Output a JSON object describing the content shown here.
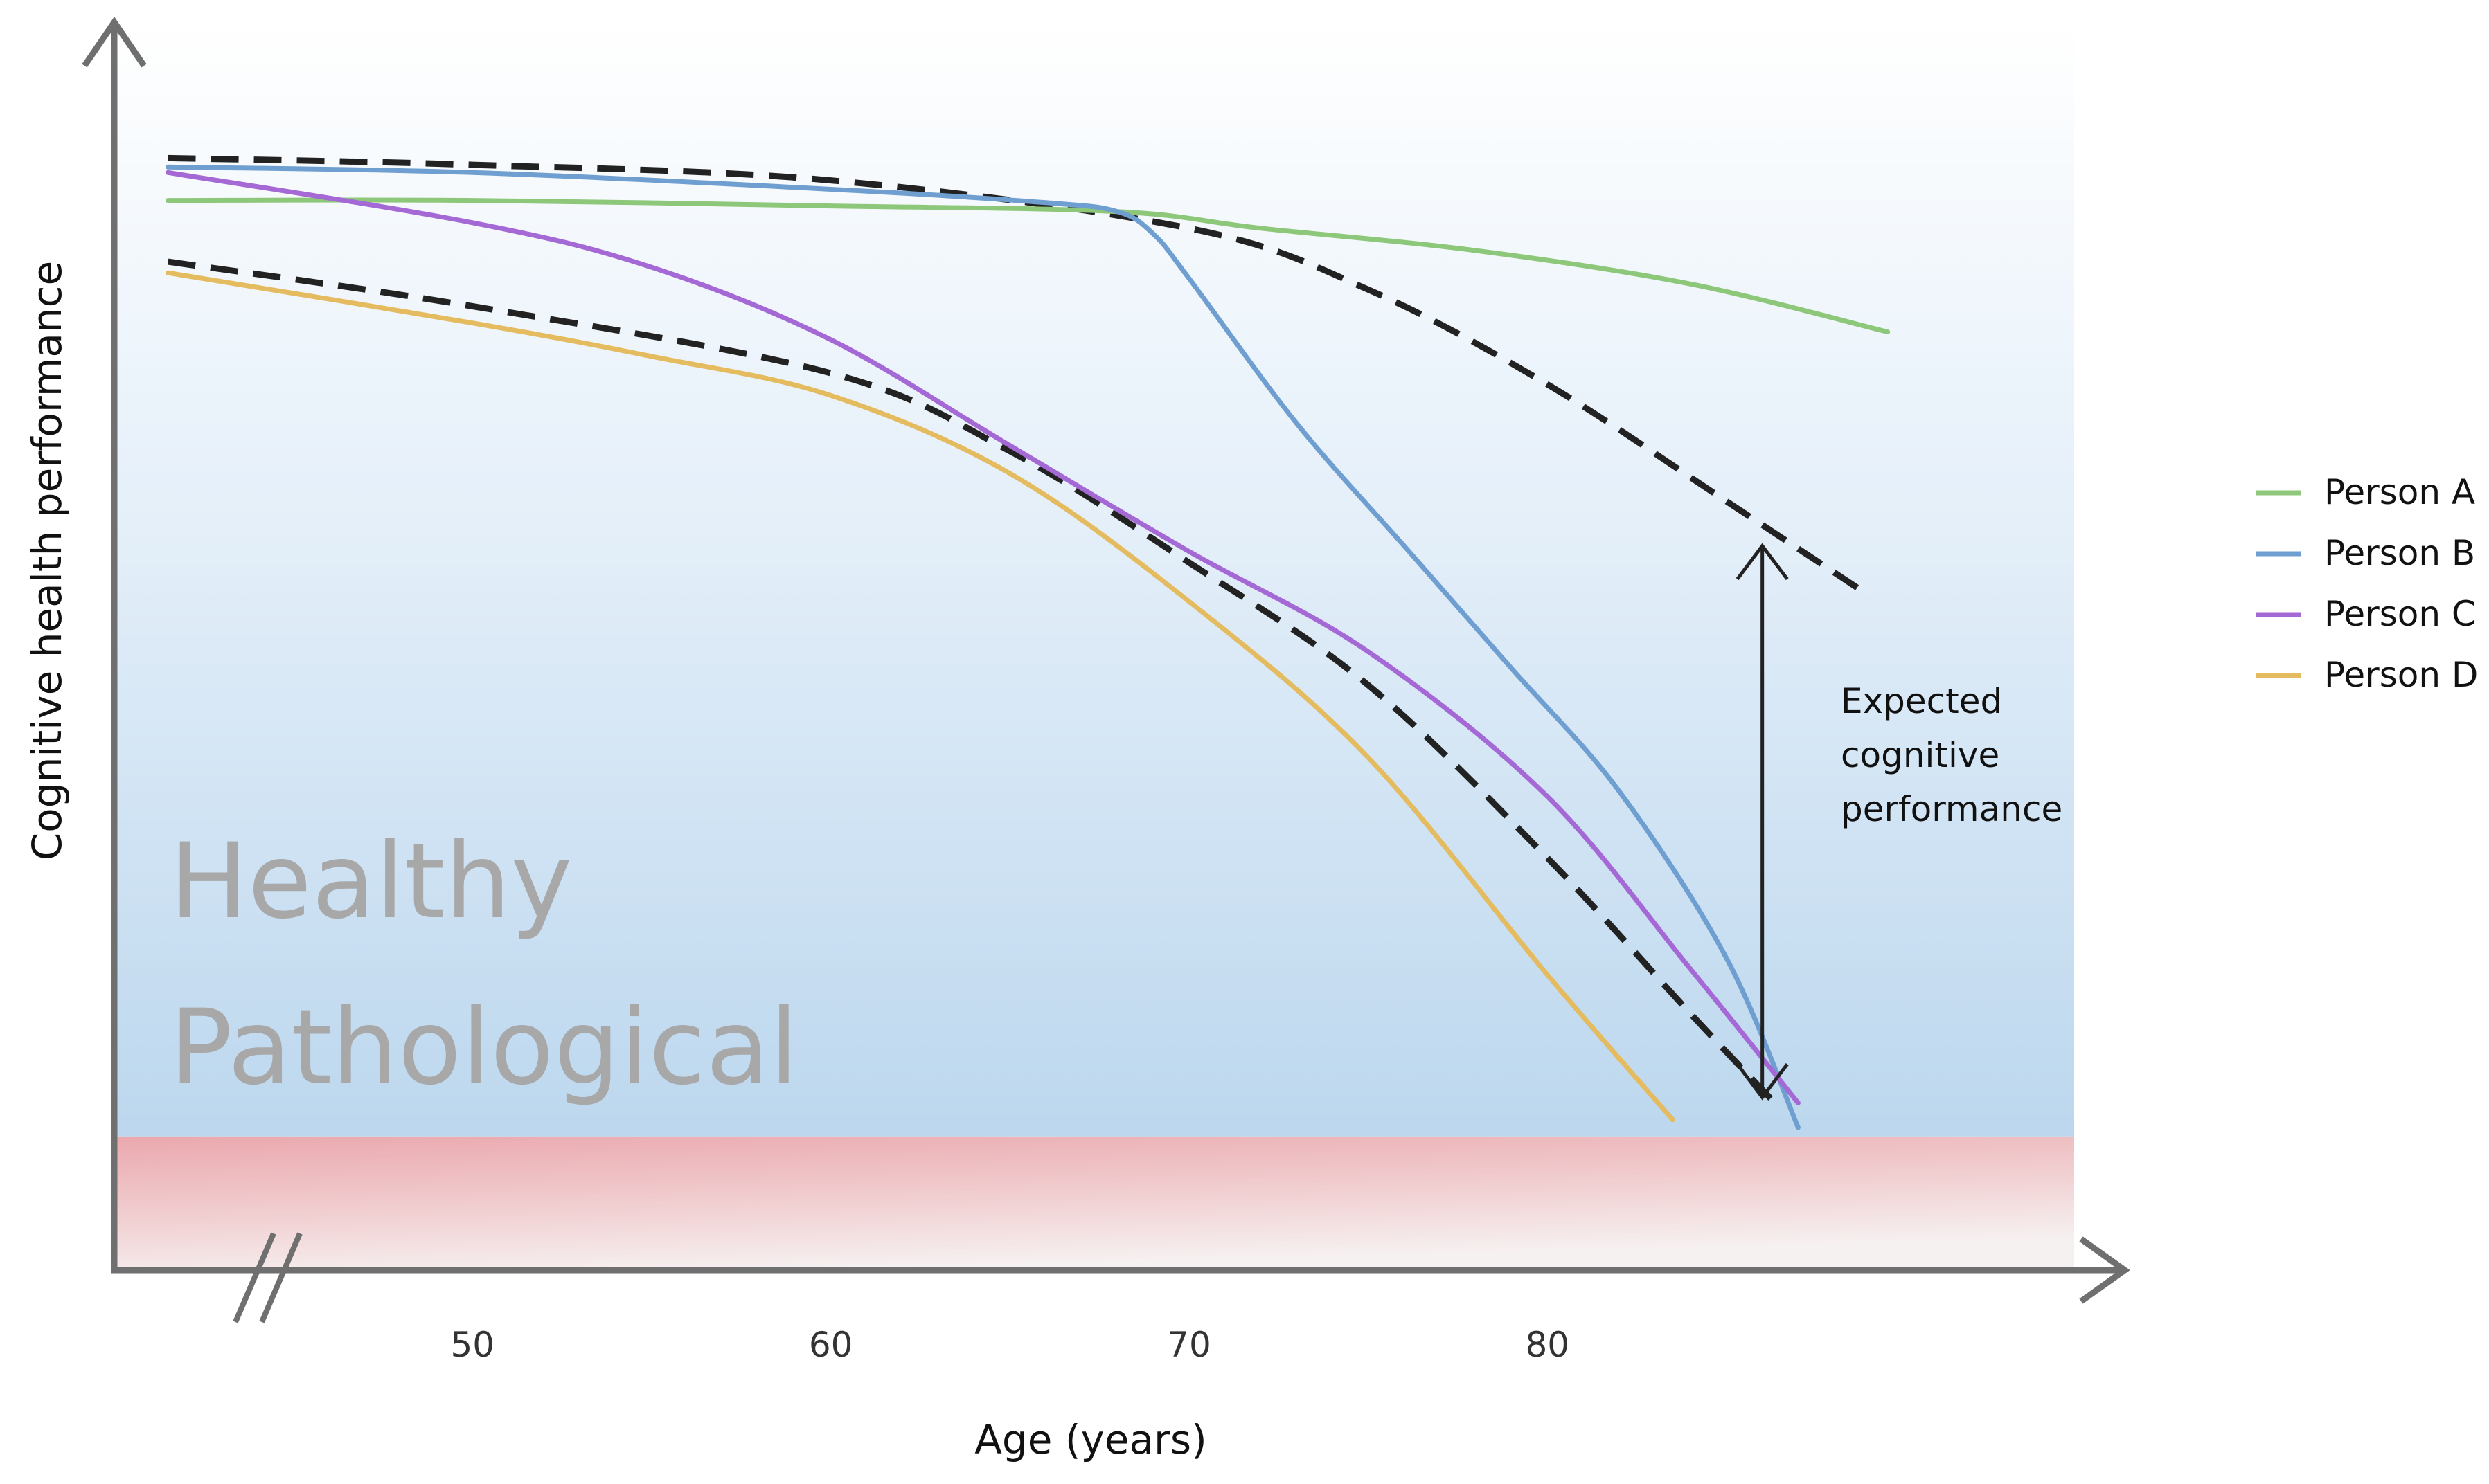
{
  "chart_data": {
    "type": "line",
    "title": "",
    "xlabel": "Age (years)",
    "ylabel": "Cognitive health performance",
    "xlim": [
      40,
      96
    ],
    "ylim": [
      -12,
      100
    ],
    "x_ticks": [
      50,
      60,
      70,
      80
    ],
    "x_tick_labels": [
      "50",
      "60",
      "70",
      "80"
    ],
    "axis_break": true,
    "grid": false,
    "legend_position": "right",
    "zones": [
      {
        "name": "Healthy",
        "label": "Healthy",
        "from": 0,
        "to": 100,
        "color": "#bcd7ee"
      },
      {
        "name": "Pathological",
        "label": "Pathological",
        "from": -12,
        "to": 0,
        "color": "#eaa8ae"
      }
    ],
    "series": [
      {
        "name": "Person A",
        "color": "#8dc77a",
        "x": [
          41.5,
          50,
          60,
          68,
          72,
          78,
          84,
          89.5
        ],
        "y": [
          84.0,
          84.0,
          83.5,
          83.0,
          81.5,
          79.5,
          76.5,
          72.2
        ]
      },
      {
        "name": "Person B",
        "color": "#6f9fd0",
        "x": [
          41.5,
          50,
          60,
          66,
          68,
          69,
          70,
          73,
          76,
          79,
          82,
          85,
          87
        ],
        "y": [
          87.0,
          86.5,
          85.0,
          83.8,
          83.0,
          81.0,
          77.0,
          64.0,
          53.0,
          42.0,
          31.0,
          16.0,
          0.8
        ]
      },
      {
        "name": "Person C",
        "color": "#a569d6",
        "x": [
          41.5,
          50,
          55,
          60,
          65,
          70,
          75,
          80,
          84,
          87
        ],
        "y": [
          86.5,
          82.0,
          78.0,
          71.5,
          62.0,
          52.5,
          43.5,
          30.5,
          15.0,
          3.0
        ]
      },
      {
        "name": "Person D",
        "color": "#e4bb5f",
        "x": [
          41.5,
          50,
          55,
          60,
          65,
          70,
          75,
          80,
          83.5
        ],
        "y": [
          77.5,
          73.0,
          70.0,
          66.5,
          59.5,
          48.0,
          34.0,
          14.5,
          1.5
        ]
      }
    ],
    "expected_trajectories": [
      {
        "name": "Expected (upper)",
        "style": "dashed",
        "color": "#222222",
        "x": [
          41.5,
          50,
          60,
          70,
          75,
          80,
          85,
          89
        ],
        "y": [
          87.8,
          87.2,
          85.8,
          81.5,
          76.0,
          67.5,
          57.0,
          48.5
        ]
      },
      {
        "name": "Expected (lower)",
        "style": "dashed",
        "color": "#222222",
        "x": [
          41.5,
          50,
          60,
          65,
          70,
          75,
          80,
          84,
          86.5
        ],
        "y": [
          78.5,
          74.5,
          68.5,
          61.5,
          51.5,
          40.5,
          25.0,
          11.0,
          2.5
        ]
      }
    ],
    "annotations": [
      {
        "name": "expected-gap",
        "text_lines": [
          "Expected",
          "cognitive",
          "performance"
        ],
        "x": 86,
        "y_from": 53.0,
        "y_to": 3.5
      }
    ]
  }
}
